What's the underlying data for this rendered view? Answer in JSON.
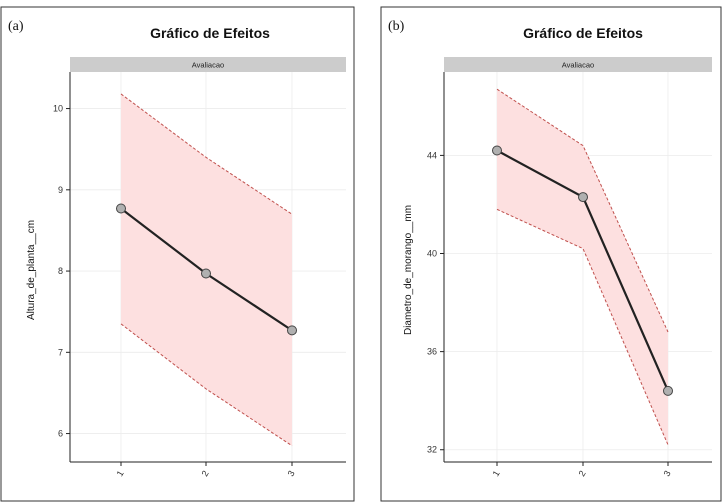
{
  "chart_data": [
    {
      "type": "line",
      "panel_label": "(a)",
      "title": "Gráfico de Efeitos",
      "facet_label": "Avaliacao",
      "xlabel": "",
      "ylabel": "Altura_de_planta__cm",
      "categories": [
        "1",
        "2",
        "3"
      ],
      "series": [
        {
          "values": [
            8.77,
            7.97,
            7.27
          ]
        }
      ],
      "ci_upper": [
        10.18,
        9.4,
        8.7
      ],
      "ci_lower": [
        7.35,
        6.55,
        5.85
      ],
      "ylim": [
        5.65,
        10.45
      ],
      "yticks": [
        6,
        7,
        8,
        9,
        10
      ],
      "grid": true,
      "colors": {
        "line": "#222222",
        "point_fill": "#b0b0b0",
        "band_fill": "#fde0e0",
        "band_edge": "#c0504d",
        "strip_fill": "#cccccc"
      }
    },
    {
      "type": "line",
      "panel_label": "(b)",
      "title": "Gráfico de Efeitos",
      "facet_label": "Avaliacao",
      "xlabel": "",
      "ylabel": "Diametro_de_morango__mm",
      "categories": [
        "1",
        "2",
        "3"
      ],
      "series": [
        {
          "values": [
            44.2,
            42.3,
            34.4
          ]
        }
      ],
      "ci_upper": [
        46.7,
        44.4,
        36.8
      ],
      "ci_lower": [
        41.8,
        40.2,
        32.2
      ],
      "ylim": [
        31.5,
        47.4
      ],
      "yticks": [
        32,
        36,
        40,
        44
      ],
      "grid": true,
      "colors": {
        "line": "#222222",
        "point_fill": "#b0b0b0",
        "band_fill": "#fde0e0",
        "band_edge": "#c0504d",
        "strip_fill": "#cccccc"
      }
    }
  ]
}
